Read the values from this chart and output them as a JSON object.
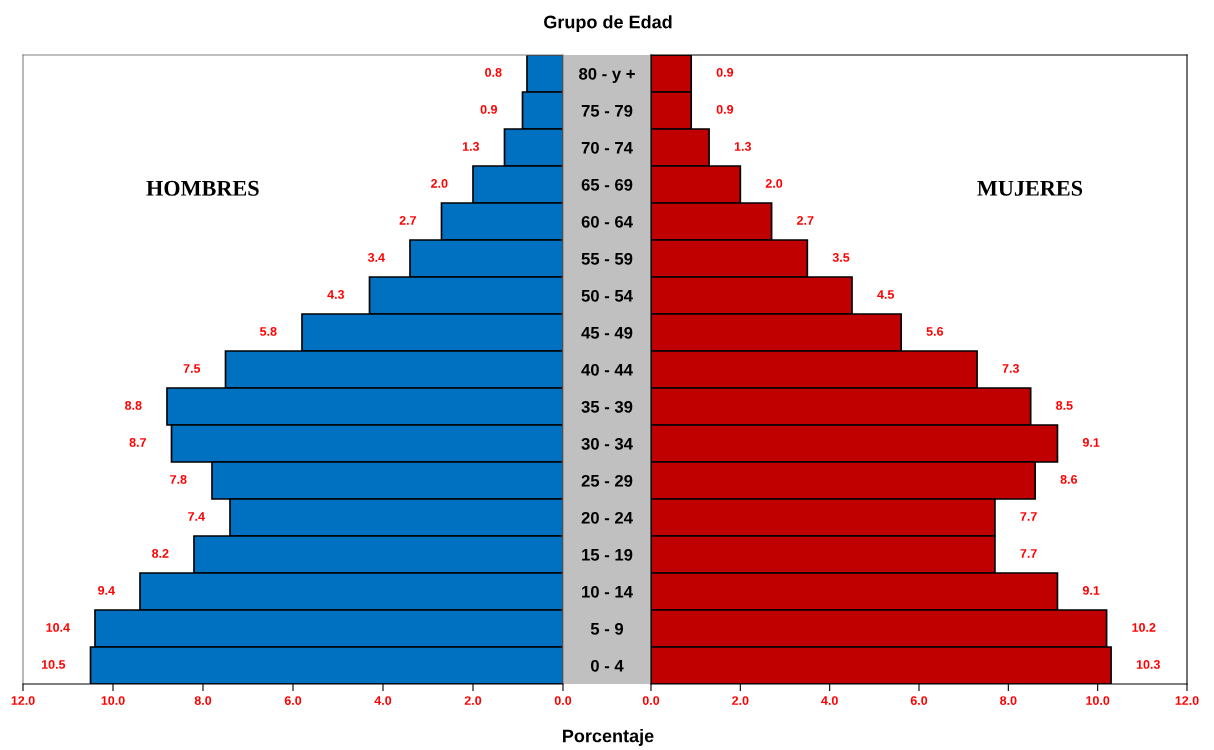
{
  "chart_data": [
    {
      "type": "bar",
      "orientation": "horizontal",
      "title": "Grupo de Edad",
      "xlabel": "Porcentaje",
      "categories": [
        "80 - y +",
        "75 - 79",
        "70 - 74",
        "65 - 69",
        "60 - 64",
        "55 - 59",
        "50 - 54",
        "45 - 49",
        "40 - 44",
        "35 - 39",
        "30 - 34",
        "25 - 29",
        "20 - 24",
        "15 - 19",
        "10 - 14",
        "5 - 9",
        "0 - 4"
      ],
      "series": [
        {
          "name": "HOMBRES",
          "color": "#0070c0",
          "values": [
            0.8,
            0.9,
            1.3,
            2.0,
            2.7,
            3.4,
            4.3,
            5.8,
            7.5,
            8.8,
            8.7,
            7.8,
            7.4,
            8.2,
            9.4,
            10.4,
            10.5
          ],
          "value_labels": [
            "0.8",
            "0.9",
            "1.3",
            "2.0",
            "2.7",
            "3.4",
            "4.3",
            "5.8",
            "7.5",
            "8.8",
            "8.7",
            "7.8",
            "7.4",
            "8.2",
            "9.4",
            "10.4",
            "10.5"
          ]
        }
      ],
      "xlim": [
        12,
        0
      ],
      "xticks": [
        {
          "value": 12,
          "label": "12.0"
        },
        {
          "value": 10,
          "label": "10.0"
        },
        {
          "value": 8,
          "label": "8.0"
        },
        {
          "value": 6,
          "label": "6.0"
        },
        {
          "value": 4,
          "label": "4.0"
        },
        {
          "value": 2,
          "label": "2.0"
        },
        {
          "value": 0,
          "label": "0.0"
        }
      ],
      "grid": false,
      "legend": false
    },
    {
      "type": "bar",
      "orientation": "horizontal",
      "series": [
        {
          "name": "MUJERES",
          "color": "#c00000",
          "values": [
            0.9,
            0.9,
            1.3,
            2.0,
            2.7,
            3.5,
            4.5,
            5.6,
            7.3,
            8.5,
            9.1,
            8.6,
            7.7,
            7.7,
            9.1,
            10.2,
            10.3
          ],
          "value_labels": [
            "0.9",
            "0.9",
            "1.3",
            "2.0",
            "2.7",
            "3.5",
            "4.5",
            "5.6",
            "7.3",
            "8.5",
            "9.1",
            "8.6",
            "7.7",
            "7.7",
            "9.1",
            "10.2",
            "10.3"
          ]
        }
      ],
      "xlim": [
        0,
        12
      ],
      "xticks": [
        {
          "value": 0,
          "label": "0.0"
        },
        {
          "value": 2,
          "label": "2.0"
        },
        {
          "value": 4,
          "label": "4.0"
        },
        {
          "value": 6,
          "label": "6.0"
        },
        {
          "value": 8,
          "label": "8.0"
        },
        {
          "value": 10,
          "label": "10.0"
        },
        {
          "value": 12,
          "label": "12.0"
        }
      ],
      "tick_labels": "x",
      "grid": false,
      "legend": false
    }
  ]
}
